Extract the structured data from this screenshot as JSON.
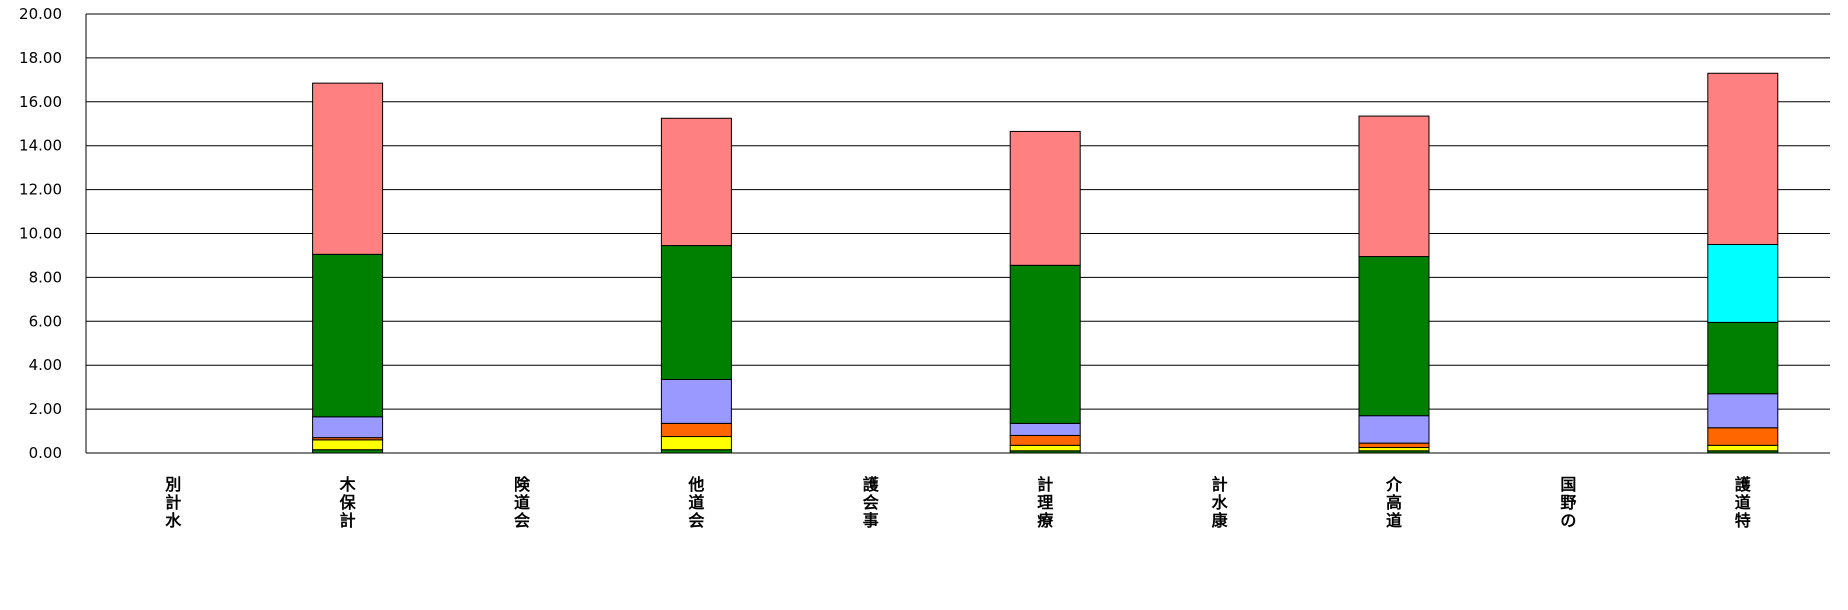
{
  "chart_data": {
    "type": "bar",
    "stacked": true,
    "title": "",
    "xlabel": "",
    "ylabel": "",
    "ylim": [
      0,
      20
    ],
    "yticks": [
      "0.00",
      "2.00",
      "4.00",
      "6.00",
      "8.00",
      "10.00",
      "12.00",
      "14.00",
      "16.00",
      "18.00",
      "20.00"
    ],
    "grid": true,
    "legend": "none",
    "categories": [
      "別計水",
      "木保計",
      "険道会",
      "他道会",
      "護会事",
      "計理療",
      "計水康",
      "介高道",
      "国野の",
      "護道特"
    ],
    "series": [
      {
        "color": "#008000",
        "values": [
          0,
          0.15,
          0,
          0.15,
          0,
          0.1,
          0,
          0.1,
          0,
          0.1
        ]
      },
      {
        "color": "#FFFF00",
        "values": [
          0,
          0.45,
          0,
          0.6,
          0,
          0.25,
          0,
          0.15,
          0,
          0.25
        ]
      },
      {
        "color": "#FF6600",
        "values": [
          0,
          0.1,
          0,
          0.6,
          0,
          0.45,
          0,
          0.2,
          0,
          0.8
        ]
      },
      {
        "color": "#9999FF",
        "values": [
          0,
          0.95,
          0,
          2.0,
          0,
          0.55,
          0,
          1.25,
          0,
          1.55
        ]
      },
      {
        "color": "#008000",
        "values": [
          0,
          7.4,
          0,
          6.1,
          0,
          7.2,
          0,
          7.25,
          0,
          3.25
        ]
      },
      {
        "color": "#00FFFF",
        "values": [
          0,
          0,
          0,
          0,
          0,
          0,
          0,
          0,
          0,
          3.55
        ]
      },
      {
        "color": "#FF8080",
        "values": [
          0,
          7.8,
          0,
          5.8,
          0,
          6.1,
          0,
          6.4,
          0,
          7.8
        ]
      }
    ]
  }
}
